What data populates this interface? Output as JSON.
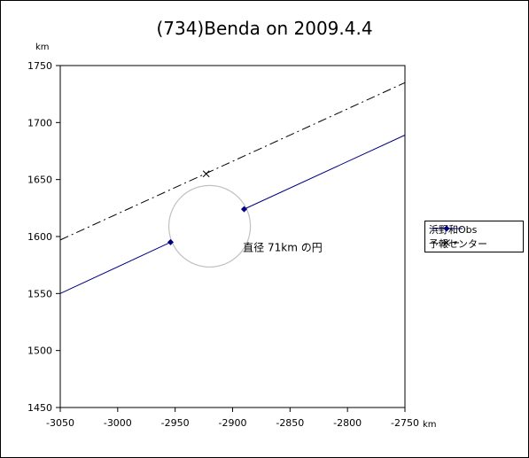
{
  "chart_data": {
    "type": "line",
    "title": "(734)Benda on 2009.4.4",
    "xlabel": "km",
    "ylabel": "km",
    "xlim": [
      -3050,
      -2750
    ],
    "ylim": [
      1450,
      1750
    ],
    "xticks": [
      -3050,
      -3000,
      -2950,
      -2900,
      -2850,
      -2800,
      -2750
    ],
    "yticks": [
      1450,
      1500,
      1550,
      1600,
      1650,
      1700,
      1750
    ],
    "grid": false,
    "legend_position": "right",
    "series": [
      {
        "name": "浜野和Obs",
        "style": "solid",
        "color": "#000080",
        "marker": "diamond",
        "segments": [
          {
            "x": [
              -3050,
              -2954
            ],
            "y": [
              1550,
              1595
            ]
          },
          {
            "x": [
              -2890,
              -2750
            ],
            "y": [
              1624,
              1689
            ]
          }
        ],
        "points": [
          {
            "x": -2954,
            "y": 1595
          },
          {
            "x": -2890,
            "y": 1624
          }
        ]
      },
      {
        "name": "予報センター",
        "style": "dash-dot",
        "color": "#000000",
        "marker": "x",
        "segments": [
          {
            "x": [
              -3050,
              -2750
            ],
            "y": [
              1597,
              1735
            ]
          }
        ],
        "points": [
          {
            "x": -2923,
            "y": 1655
          }
        ]
      }
    ],
    "circle": {
      "cx": -2920,
      "cy": 1609,
      "diameter_km": 71,
      "color": "#c0c0c0"
    },
    "annotation": {
      "text": "直径 71km の円",
      "x": -2891,
      "y": 1587
    }
  }
}
